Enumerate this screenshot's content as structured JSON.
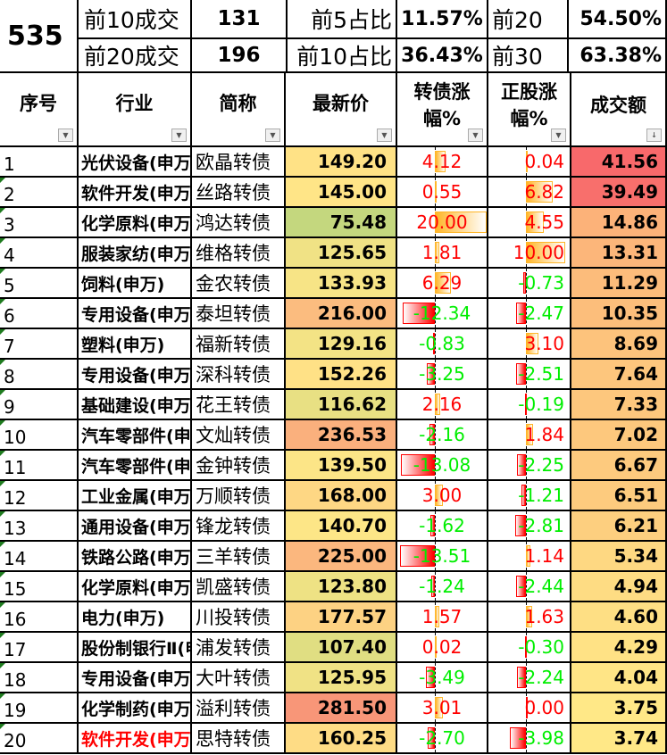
{
  "summary": {
    "count": "535",
    "top10_label": "前10成交",
    "top10_value": "131",
    "top20_label": "前20成交",
    "top20_value": "196",
    "top5_share_label": "前5占比",
    "top5_share_value": "11.57%",
    "top10_share_label": "前10占比",
    "top10_share_value": "36.43%",
    "top20_label2": "前20",
    "top20_pct": "54.50%",
    "top30_label": "前30",
    "top30_pct": "63.38%"
  },
  "headers": [
    "序号",
    "行业",
    "简称",
    "最新价",
    "转债涨幅%",
    "正股涨幅%",
    "成交额"
  ],
  "colors": {
    "pos_text": "#FF0000",
    "neg_text": "#00EE00",
    "highlight_industry": "#FF0000"
  },
  "rows": [
    {
      "no": "1",
      "industry": "光伏设备(申万)",
      "name": "欧晶转债",
      "price": "149.20",
      "bond_chg": "4.12",
      "stock_chg": "0.04",
      "amount": "41.56"
    },
    {
      "no": "2",
      "industry": "软件开发(申万)",
      "name": "丝路转债",
      "price": "145.00",
      "bond_chg": "0.55",
      "stock_chg": "6.82",
      "amount": "39.49"
    },
    {
      "no": "3",
      "industry": "化学原料(申万)",
      "name": "鸿达转债",
      "price": "75.48",
      "bond_chg": "20.00",
      "stock_chg": "4.55",
      "amount": "14.86"
    },
    {
      "no": "4",
      "industry": "服装家纺(申万)",
      "name": "维格转债",
      "price": "125.65",
      "bond_chg": "1.81",
      "stock_chg": "10.00",
      "amount": "13.31"
    },
    {
      "no": "5",
      "industry": "饲料(申万)",
      "name": "金农转债",
      "price": "133.93",
      "bond_chg": "6.29",
      "stock_chg": "-0.73",
      "amount": "11.29"
    },
    {
      "no": "6",
      "industry": "专用设备(申万)",
      "name": "泰坦转债",
      "price": "216.00",
      "bond_chg": "-12.34",
      "stock_chg": "-2.47",
      "amount": "10.35"
    },
    {
      "no": "7",
      "industry": "塑料(申万)",
      "name": "福新转债",
      "price": "129.16",
      "bond_chg": "-0.83",
      "stock_chg": "3.10",
      "amount": "8.69"
    },
    {
      "no": "8",
      "industry": "专用设备(申万)",
      "name": "深科转债",
      "price": "152.26",
      "bond_chg": "-3.25",
      "stock_chg": "-2.51",
      "amount": "7.64"
    },
    {
      "no": "9",
      "industry": "基础建设(申万)",
      "name": "花王转债",
      "price": "116.62",
      "bond_chg": "2.16",
      "stock_chg": "-0.19",
      "amount": "7.33"
    },
    {
      "no": "10",
      "industry": "汽车零部件(申万)",
      "name": "文灿转债",
      "price": "236.53",
      "bond_chg": "-2.16",
      "stock_chg": "1.84",
      "amount": "7.02"
    },
    {
      "no": "11",
      "industry": "汽车零部件(申万)",
      "name": "金钟转债",
      "price": "139.50",
      "bond_chg": "-13.08",
      "stock_chg": "-2.25",
      "amount": "6.67"
    },
    {
      "no": "12",
      "industry": "工业金属(申万)",
      "name": "万顺转债",
      "price": "168.00",
      "bond_chg": "3.00",
      "stock_chg": "-1.21",
      "amount": "6.51"
    },
    {
      "no": "13",
      "industry": "通用设备(申万)",
      "name": "锋龙转债",
      "price": "140.70",
      "bond_chg": "-1.62",
      "stock_chg": "-2.81",
      "amount": "6.21"
    },
    {
      "no": "14",
      "industry": "铁路公路(申万)",
      "name": "三羊转债",
      "price": "225.00",
      "bond_chg": "-13.51",
      "stock_chg": "1.14",
      "amount": "5.34"
    },
    {
      "no": "15",
      "industry": "化学原料(申万)",
      "name": "凯盛转债",
      "price": "123.80",
      "bond_chg": "-1.24",
      "stock_chg": "-2.44",
      "amount": "4.94"
    },
    {
      "no": "16",
      "industry": "电力(申万)",
      "name": "川投转债",
      "price": "177.57",
      "bond_chg": "1.57",
      "stock_chg": "1.63",
      "amount": "4.60"
    },
    {
      "no": "17",
      "industry": "股份制银行Ⅱ(申万)",
      "name": "浦发转债",
      "price": "107.40",
      "bond_chg": "0.02",
      "stock_chg": "-0.30",
      "amount": "4.29"
    },
    {
      "no": "18",
      "industry": "专用设备(申万)",
      "name": "大叶转债",
      "price": "125.95",
      "bond_chg": "-3.49",
      "stock_chg": "-2.24",
      "amount": "4.04"
    },
    {
      "no": "19",
      "industry": "化学制药(申万)",
      "name": "溢利转债",
      "price": "281.50",
      "bond_chg": "3.01",
      "stock_chg": "0.00",
      "amount": "3.75"
    },
    {
      "no": "20",
      "industry": "软件开发(申万)",
      "name": "思特转债",
      "price": "160.25",
      "bond_chg": "-2.70",
      "stock_chg": "-3.98",
      "amount": "3.74",
      "industry_highlight": true
    }
  ]
}
